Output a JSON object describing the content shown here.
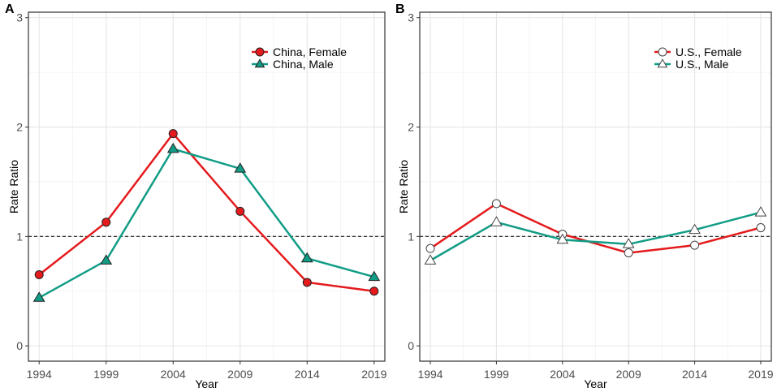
{
  "figure_panels": [
    "A",
    "B"
  ],
  "chart_data": [
    {
      "type": "line",
      "panel_label": "A",
      "xlabel": "Year",
      "ylabel": "Rate Ratio",
      "x": [
        1994,
        1999,
        2004,
        2009,
        2014,
        2019
      ],
      "x_ticks": [
        "1994",
        "1999",
        "2004",
        "2009",
        "2014",
        "2019"
      ],
      "xlim": [
        1993.2,
        2019.8
      ],
      "ylim": [
        -0.14,
        3.05
      ],
      "y_ticks": [
        "0",
        "1",
        "2",
        "3"
      ],
      "reference_line": 1,
      "grid": true,
      "legend_position": "top-right",
      "series": [
        {
          "name": "China, Female",
          "values": [
            0.65,
            1.13,
            1.94,
            1.23,
            0.58,
            0.5
          ],
          "color": "#e41a1c",
          "marker": "circle",
          "fill": "#e41a1c"
        },
        {
          "name": "China, Male",
          "values": [
            0.44,
            0.78,
            1.8,
            1.62,
            0.8,
            0.63
          ],
          "color": "#119c86",
          "marker": "triangle",
          "fill": "#119c86"
        }
      ]
    },
    {
      "type": "line",
      "panel_label": "B",
      "xlabel": "Year",
      "ylabel": "Rate Ratio",
      "x": [
        1994,
        1999,
        2004,
        2009,
        2014,
        2019
      ],
      "x_ticks": [
        "1994",
        "1999",
        "2004",
        "2009",
        "2014",
        "2019"
      ],
      "xlim": [
        1993.2,
        2019.8
      ],
      "ylim": [
        -0.14,
        3.05
      ],
      "y_ticks": [
        "0",
        "1",
        "2",
        "3"
      ],
      "reference_line": 1,
      "grid": true,
      "legend_position": "top-right",
      "series": [
        {
          "name": "U.S., Female",
          "values": [
            0.89,
            1.3,
            1.02,
            0.85,
            0.92,
            1.08
          ],
          "color": "#e41a1c",
          "marker": "circle",
          "fill": "none"
        },
        {
          "name": "U.S., Male",
          "values": [
            0.78,
            1.13,
            0.97,
            0.93,
            1.06,
            1.22
          ],
          "color": "#119c86",
          "marker": "triangle",
          "fill": "none"
        }
      ]
    }
  ]
}
